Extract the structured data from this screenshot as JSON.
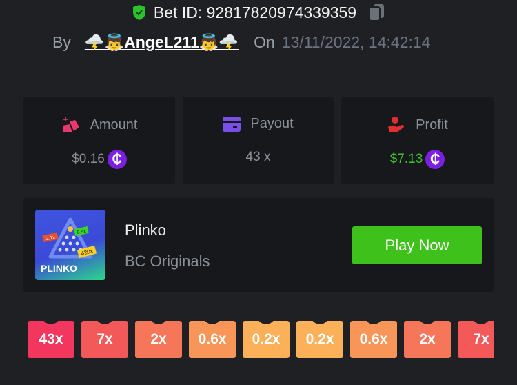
{
  "header": {
    "bet_id_label": "Bet ID: 92817820974339359",
    "by_label": "By",
    "username": "🌩️👼AngeL211👼🌩️",
    "on_label": "On",
    "datetime": "13/11/2022, 14:42:14"
  },
  "stats": [
    {
      "label": "Amount",
      "value": "$0.16",
      "icon": "amount-icon",
      "color": "#e8396e",
      "value_color": "#8a8f98",
      "coin": "₵"
    },
    {
      "label": "Payout",
      "value": "43 x",
      "icon": "card-icon",
      "color": "#7b4fe6",
      "value_color": "#8a8f98"
    },
    {
      "label": "Profit",
      "value": "$7.13",
      "icon": "hand-user-icon",
      "color": "#e02f2f",
      "value_color": "#3fc32a",
      "coin": "₵"
    }
  ],
  "game": {
    "name": "Plinko",
    "provider": "BC Originals",
    "play_label": "Play Now",
    "thumb_text": "PLINKO",
    "thumb_tags": [
      "2.1x",
      "0.5x",
      "420x"
    ]
  },
  "multipliers": [
    {
      "label": "43x",
      "color": "#f2365e"
    },
    {
      "label": "7x",
      "color": "#f45959"
    },
    {
      "label": "2x",
      "color": "#f6765a"
    },
    {
      "label": "0.6x",
      "color": "#f89659"
    },
    {
      "label": "0.2x",
      "color": "#fbb059"
    },
    {
      "label": "0.2x",
      "color": "#fbb059"
    },
    {
      "label": "0.6x",
      "color": "#f89659"
    },
    {
      "label": "2x",
      "color": "#f6765a"
    },
    {
      "label": "7x",
      "color": "#f45959"
    }
  ]
}
